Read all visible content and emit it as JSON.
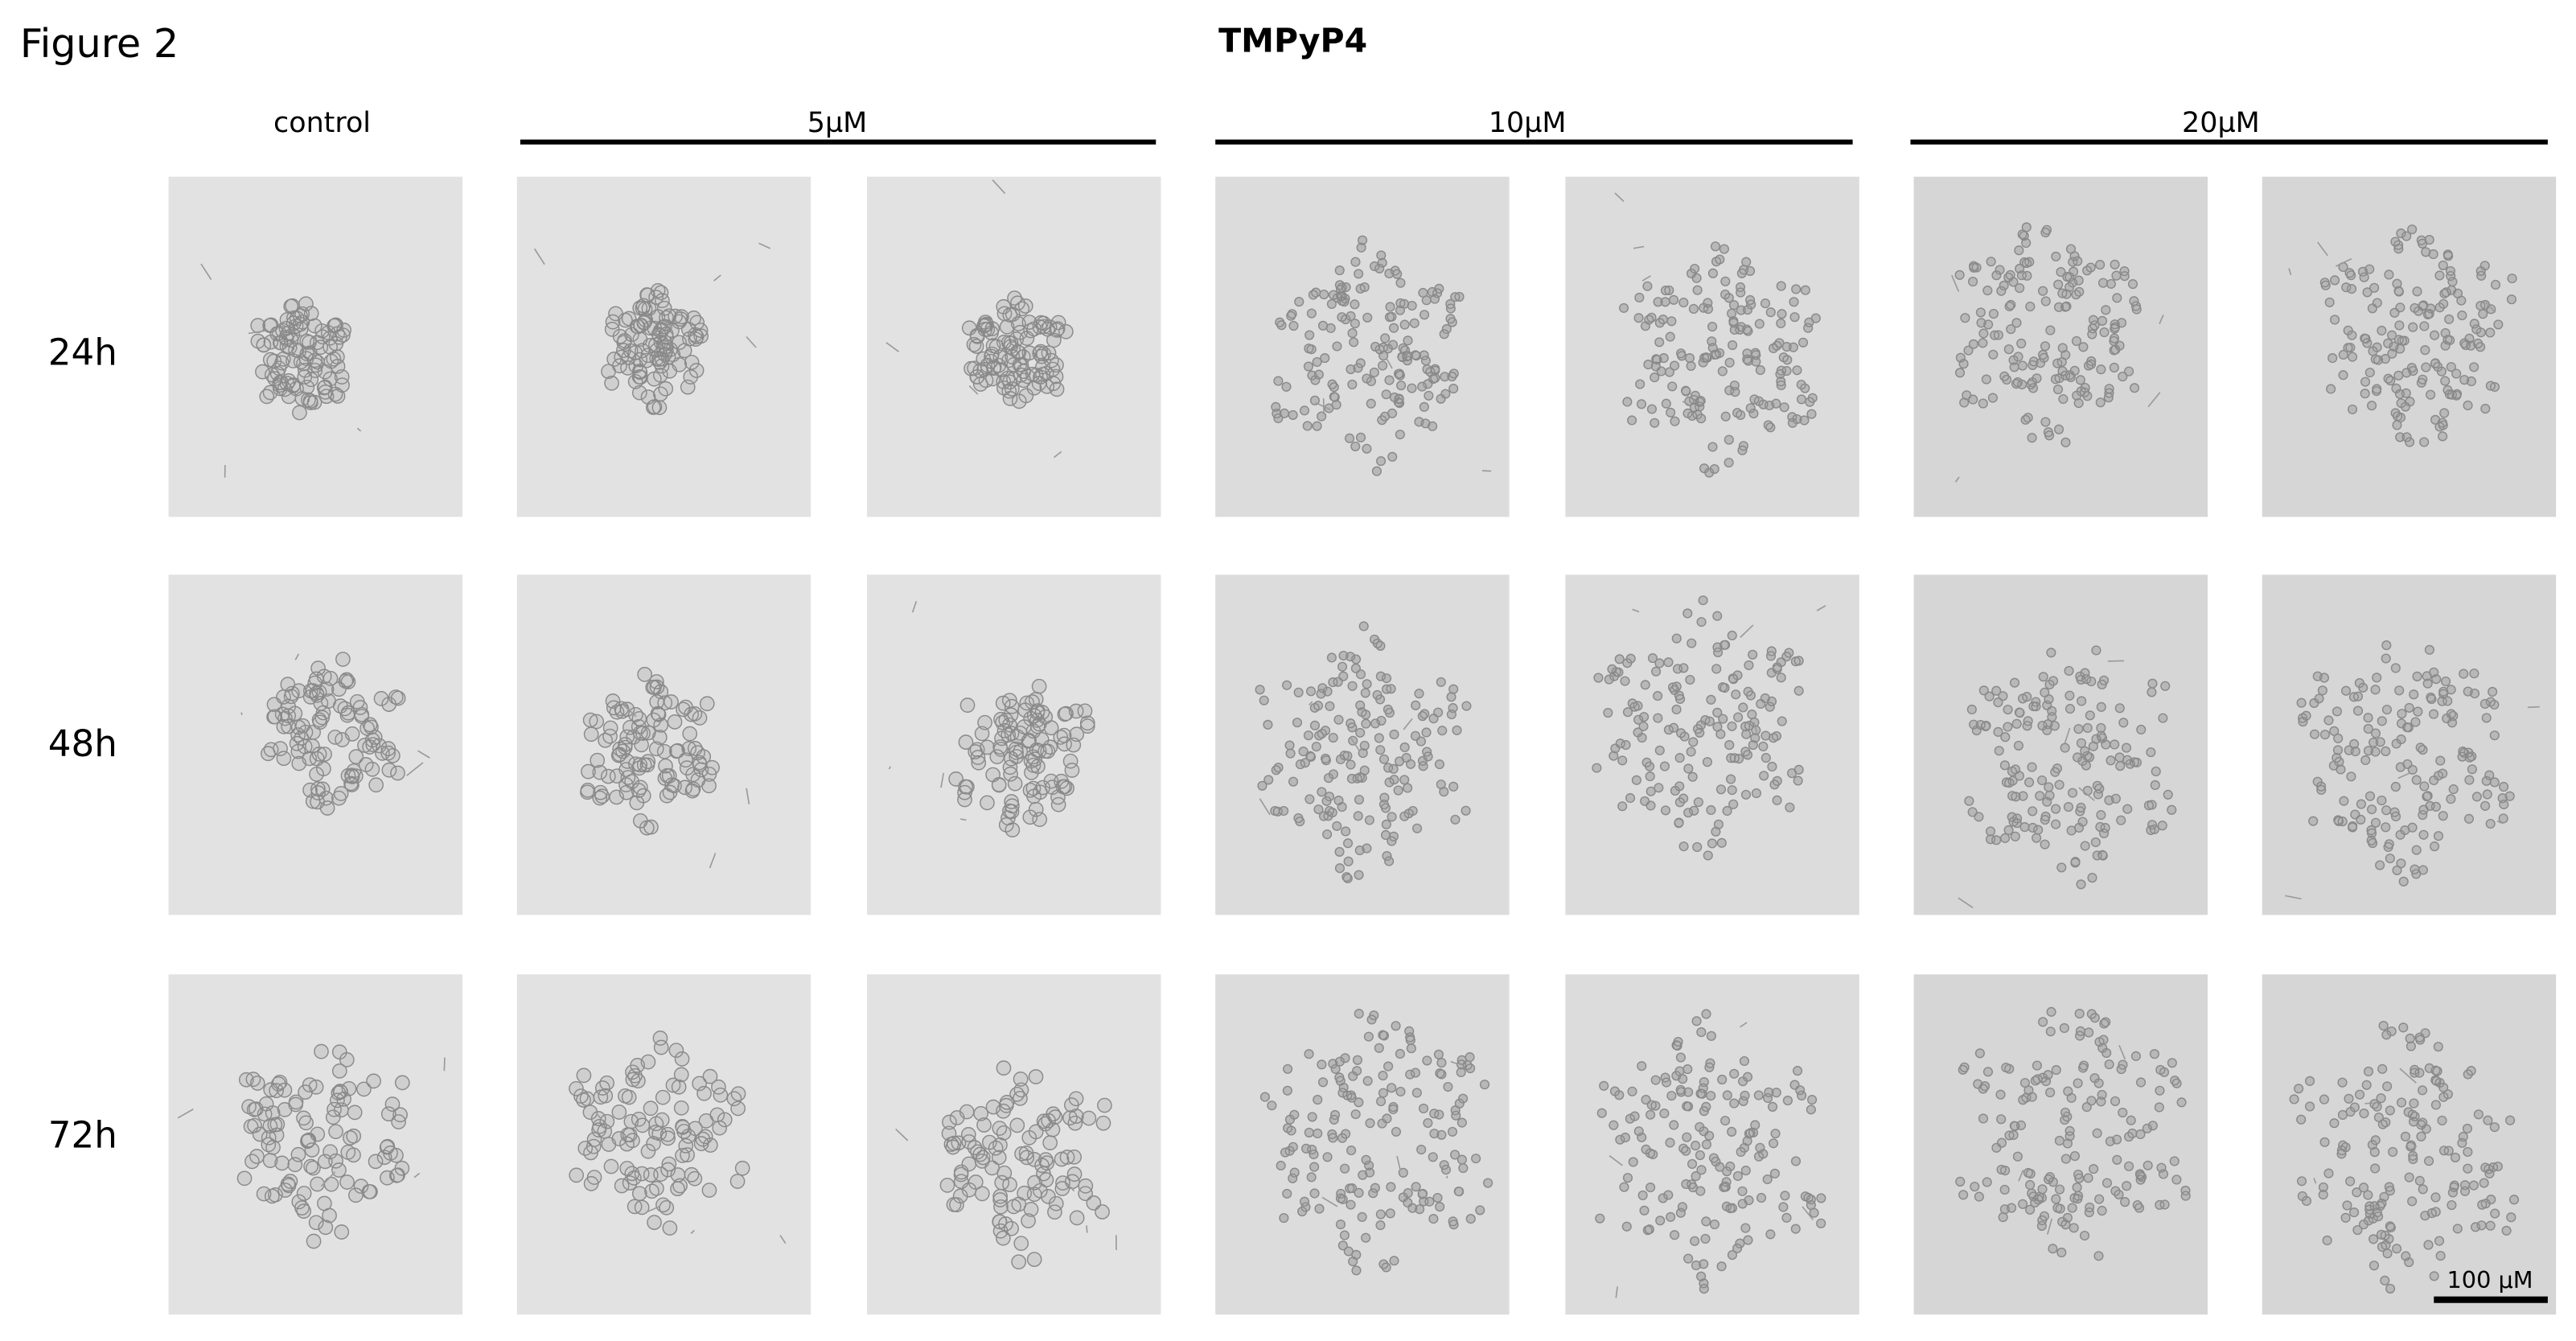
{
  "figure": {
    "title": "Figure 2",
    "compound": "TMPyP4",
    "columns": [
      "control",
      "5µM",
      "10µM",
      "20µM"
    ],
    "rows": [
      "24h",
      "48h",
      "72h"
    ],
    "scale_bar": "100 µM"
  }
}
